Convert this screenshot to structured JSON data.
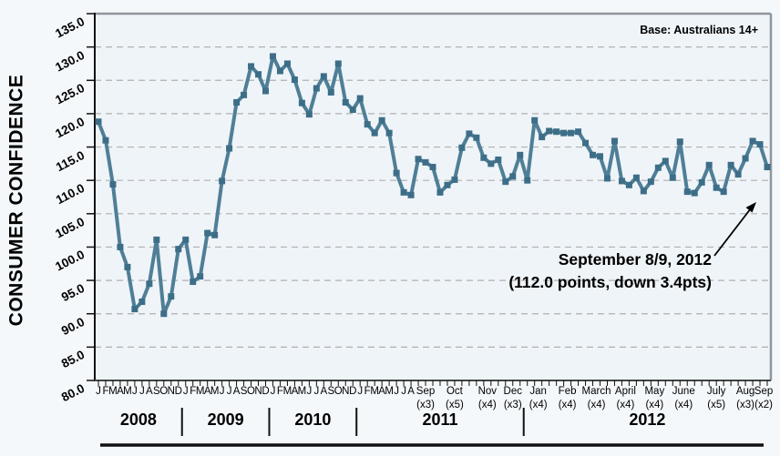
{
  "base_note": "Base: Australians 14+",
  "annotation": {
    "line1": "September 8/9, 2012",
    "line2": "(112.0 points, down 3.4pts)"
  },
  "chart_data": {
    "type": "line",
    "title": "",
    "xlabel": "",
    "ylabel": "CONSUMER CONFIDENCE",
    "ylim": [
      80,
      135
    ],
    "y_ticks": [
      "80.0",
      "85.0",
      "90.0",
      "95.0",
      "100.0",
      "105.0",
      "110.0",
      "115.0",
      "120.0",
      "125.0",
      "130.0",
      "135.0"
    ],
    "grid": "horizontal-dashed",
    "legend": "none",
    "line_color": "#4f7f97",
    "marker_color": "#3d6e88",
    "axis_color": "#444444",
    "border_color": "#8f969c",
    "grid_color": "#b0b0b0",
    "x_axis": {
      "years": [
        {
          "label": "2008",
          "months": [
            "J",
            "F",
            "M",
            "A",
            "M",
            "J",
            "J",
            "A",
            "S",
            "O",
            "N",
            "D"
          ],
          "groups": []
        },
        {
          "label": "2009",
          "months": [
            "J",
            "F",
            "M",
            "A",
            "M",
            "J",
            "J",
            "A",
            "S",
            "O",
            "N",
            "D"
          ],
          "groups": []
        },
        {
          "label": "2010",
          "months": [
            "J",
            "F",
            "M",
            "A",
            "M",
            "J",
            "J",
            "A",
            "S",
            "O",
            "N",
            "D"
          ],
          "groups": []
        },
        {
          "label": "2011",
          "months": [
            "J",
            "F",
            "M",
            "A",
            "M",
            "J",
            "J",
            "A"
          ],
          "groups": [
            {
              "label": "Sep",
              "note": "(x3)",
              "count": 3
            },
            {
              "label": "Oct",
              "note": "(x5)",
              "count": 5
            },
            {
              "label": "Nov",
              "note": "(x4)",
              "count": 4
            },
            {
              "label": "Dec",
              "note": "(x3)",
              "count": 3
            }
          ]
        },
        {
          "label": "2012",
          "months": [],
          "groups": [
            {
              "label": "Jan",
              "note": "(x4)",
              "count": 4
            },
            {
              "label": "Feb",
              "note": "(x4)",
              "count": 4
            },
            {
              "label": "March",
              "note": "(x4)",
              "count": 4
            },
            {
              "label": "April",
              "note": "(x4)",
              "count": 4
            },
            {
              "label": "May",
              "note": "(x4)",
              "count": 4
            },
            {
              "label": "June",
              "note": "(x4)",
              "count": 4
            },
            {
              "label": "July",
              "note": "(x5)",
              "count": 5
            },
            {
              "label": "Aug",
              "note": "(x3)",
              "count": 3
            },
            {
              "label": "Sep",
              "note": "(x2)",
              "count": 2
            }
          ]
        }
      ]
    },
    "series": [
      {
        "name": "Consumer Confidence",
        "values": [
          118.8,
          116.0,
          109.4,
          100.0,
          97.0,
          90.7,
          91.8,
          94.5,
          101.1,
          90.0,
          92.6,
          99.7,
          101.1,
          94.8,
          95.6,
          102.1,
          101.8,
          109.9,
          114.8,
          121.7,
          122.8,
          127.1,
          125.9,
          123.4,
          128.6,
          126.4,
          127.5,
          125.1,
          121.6,
          119.9,
          123.8,
          125.6,
          123.2,
          127.5,
          121.7,
          120.6,
          122.3,
          118.4,
          117.1,
          119.0,
          117.1,
          111.1,
          108.2,
          107.8,
          113.2,
          112.7,
          112.0,
          108.2,
          109.3,
          110.1,
          114.9,
          117.0,
          116.4,
          113.4,
          112.5,
          113.1,
          109.8,
          110.6,
          113.8,
          110.0,
          119.0,
          116.5,
          117.4,
          117.3,
          117.1,
          117.1,
          117.3,
          115.6,
          113.8,
          113.6,
          110.3,
          115.9,
          109.9,
          109.3,
          110.4,
          108.4,
          109.8,
          111.9,
          112.9,
          110.4,
          115.8,
          108.3,
          108.1,
          109.7,
          112.3,
          108.9,
          108.3,
          112.3,
          110.9,
          113.3,
          115.9,
          115.4,
          112.0
        ]
      }
    ],
    "final_point_label": "112.0"
  }
}
